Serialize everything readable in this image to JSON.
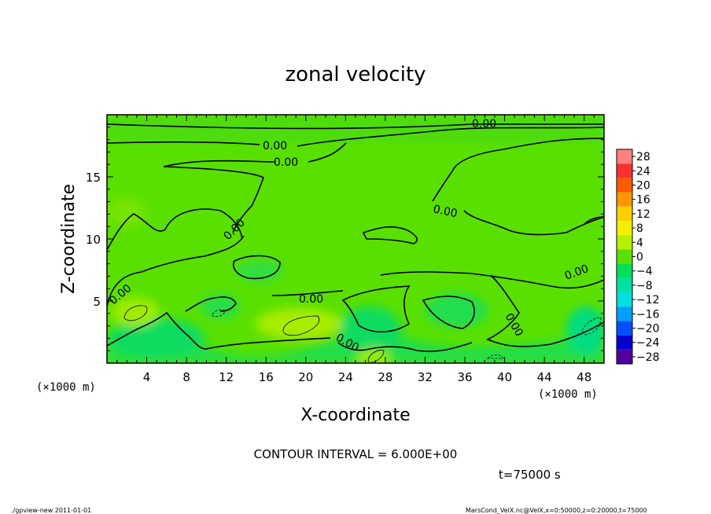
{
  "chart_data": {
    "type": "heatmap",
    "title": "zonal velocity",
    "xlabel": "X-coordinate",
    "ylabel": "Z-coordinate",
    "x_unit_label": "(×1000 m)",
    "x_unit_label_right": "(×1000 m)",
    "xlim": [
      0,
      50
    ],
    "ylim": [
      0,
      20
    ],
    "x_ticks": [
      4,
      8,
      12,
      16,
      20,
      24,
      28,
      32,
      36,
      40,
      44,
      48
    ],
    "y_ticks": [
      5,
      10,
      15
    ],
    "contour_label": "0.00",
    "contour_interval_text": "CONTOUR INTERVAL = 6.000E+00",
    "time_text": "t=75000 s",
    "colorbar": {
      "levels": [
        28,
        24,
        20,
        16,
        12,
        8,
        4,
        0,
        -4,
        -8,
        -12,
        -16,
        -20,
        -24,
        -28
      ],
      "level_labels": [
        "28",
        "24",
        "20",
        "16",
        "12",
        "8",
        "4",
        "0",
        "−4",
        "−8",
        "−12",
        "−16",
        "−20",
        "−24",
        "−28"
      ],
      "colors": [
        "#ff8080",
        "#ff3030",
        "#ff5a00",
        "#ff9600",
        "#ffd000",
        "#f0f000",
        "#b4f000",
        "#5ae000",
        "#00e05a",
        "#00e0a0",
        "#00e0e0",
        "#00a0ff",
        "#0050ff",
        "#0000d0",
        "#5000a0"
      ]
    }
  },
  "footer": {
    "left": "./gpview-new  2011-01-01",
    "right": "MarsCond_VelX.nc@VelX,x=0:50000,z=0:20000,t=75000"
  }
}
